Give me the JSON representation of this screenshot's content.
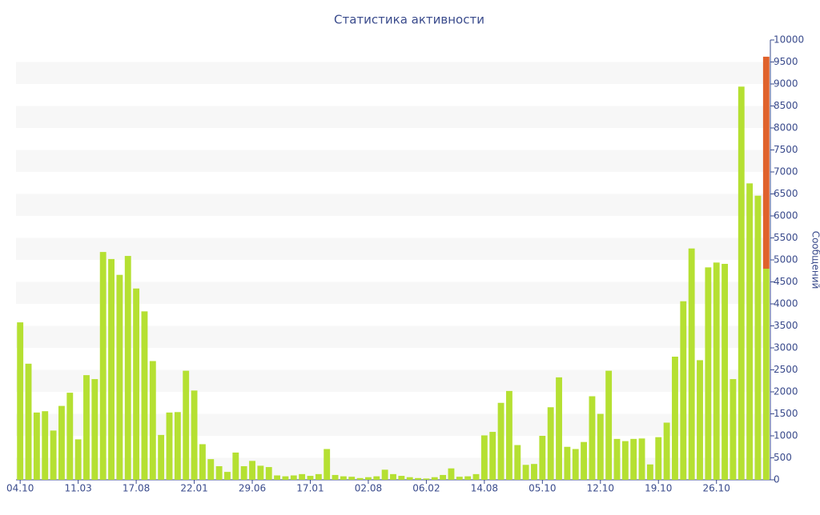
{
  "chart_data": {
    "type": "bar",
    "title": "Статистика активности",
    "y_label": "Сообщений",
    "categories": [
      "04.10",
      null,
      null,
      null,
      null,
      null,
      null,
      "11.03",
      null,
      null,
      null,
      null,
      null,
      null,
      "17.08",
      null,
      null,
      null,
      null,
      null,
      null,
      "22.01",
      null,
      null,
      null,
      null,
      null,
      null,
      "29.06",
      null,
      null,
      null,
      null,
      null,
      null,
      "17.01",
      null,
      null,
      null,
      null,
      null,
      null,
      "02.08",
      null,
      null,
      null,
      null,
      null,
      null,
      "06.02",
      null,
      null,
      null,
      null,
      null,
      null,
      "14.08",
      null,
      null,
      null,
      null,
      null,
      null,
      "05.10",
      null,
      null,
      null,
      null,
      null,
      null,
      "12.10",
      null,
      null,
      null,
      null,
      null,
      null,
      "19.10",
      null,
      null,
      null,
      null,
      null,
      null,
      "26.10",
      null,
      null,
      null,
      null,
      null,
      null
    ],
    "series": [
      {
        "color": "#b5e032",
        "values": [
          3580,
          2640,
          1530,
          1560,
          1120,
          1680,
          1980,
          920,
          2380,
          2290,
          5180,
          5020,
          4660,
          5090,
          4350,
          3830,
          2700,
          1020,
          1530,
          1540,
          2480,
          2030,
          810,
          470,
          310,
          180,
          620,
          310,
          430,
          320,
          290,
          100,
          80,
          100,
          130,
          90,
          130,
          700,
          110,
          80,
          70,
          40,
          60,
          80,
          230,
          130,
          90,
          60,
          40,
          30,
          60,
          110,
          260,
          70,
          80,
          130,
          1010,
          1090,
          1750,
          2020,
          790,
          340,
          360,
          1000,
          1650,
          2330,
          750,
          700,
          860,
          1900,
          1500,
          2480,
          930,
          880,
          930,
          940,
          350,
          970,
          1300,
          2800,
          4060,
          5260,
          2720,
          4830,
          4940,
          4910,
          2290,
          8940,
          6740,
          6460,
          4800
        ]
      },
      {
        "color": "#e0622b",
        "values": [
          null,
          null,
          null,
          null,
          null,
          null,
          null,
          null,
          null,
          null,
          null,
          null,
          null,
          null,
          null,
          null,
          null,
          null,
          null,
          null,
          null,
          null,
          null,
          null,
          null,
          null,
          null,
          null,
          null,
          null,
          null,
          null,
          null,
          null,
          null,
          null,
          null,
          null,
          null,
          null,
          null,
          null,
          null,
          null,
          null,
          null,
          null,
          null,
          null,
          null,
          null,
          null,
          null,
          null,
          null,
          null,
          null,
          null,
          null,
          null,
          null,
          null,
          null,
          null,
          null,
          null,
          null,
          null,
          null,
          null,
          null,
          null,
          null,
          null,
          null,
          null,
          null,
          null,
          null,
          null,
          null,
          null,
          null,
          null,
          null,
          null,
          null,
          null,
          null,
          null,
          4820
        ]
      }
    ],
    "stacked": true,
    "ylim": [
      0,
      10000
    ],
    "yticks": [
      0,
      500,
      1000,
      1500,
      2000,
      2500,
      3000,
      3500,
      4000,
      4500,
      5000,
      5500,
      6000,
      6500,
      7000,
      7500,
      8000,
      8500,
      9000,
      9500,
      10000
    ],
    "grid": "bands",
    "y_axis_side": "right"
  }
}
